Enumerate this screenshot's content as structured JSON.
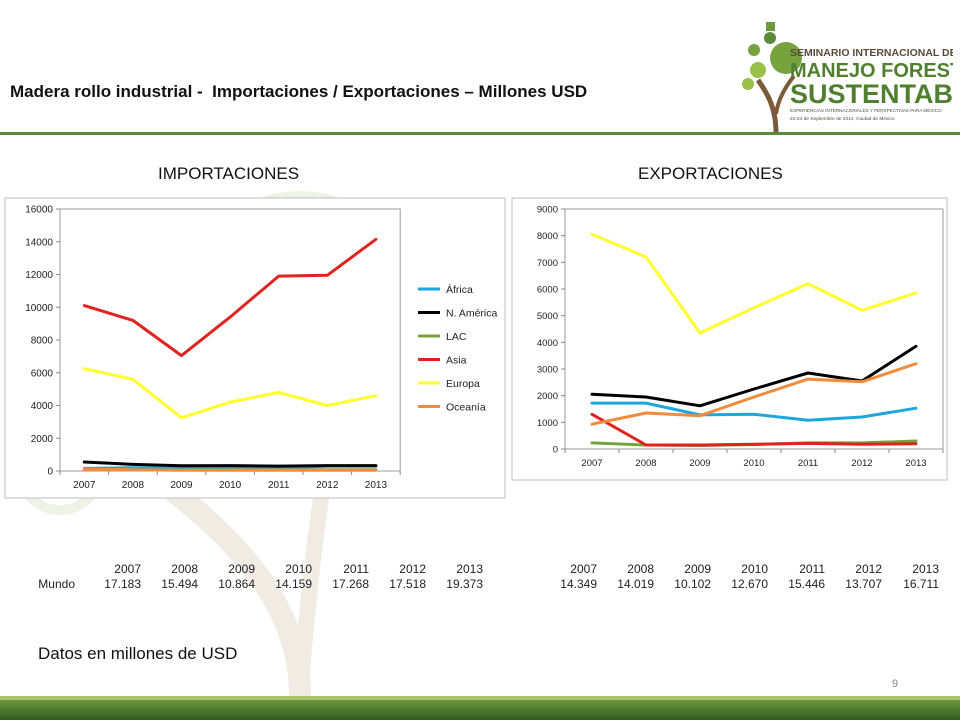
{
  "title": "Madera rollo industrial -  Importaciones / Exportaciones – Millones USD",
  "logo": {
    "line1": "SEMINARIO INTERNACIONAL DE",
    "line2": "MANEJO FORESTAL",
    "line3": "SUSTENTABLE",
    "line4": "EXPERIENCIAS INTERNACIONALES Y PERSPECTIVAS PARA MÉXICO",
    "line5": "22-24 de Septiembre de 2014, Ciudad de México"
  },
  "colors": {
    "africa": "#1fa6dc",
    "namerica": "#000000",
    "lac": "#77a33f",
    "asia": "#e0231f",
    "europa": "#ffff2e",
    "oceania": "#f28b3c",
    "accent": "#5a8a3a"
  },
  "chart_data": [
    {
      "type": "line",
      "title": "IMPORTACIONES",
      "x": [
        "2007",
        "2008",
        "2009",
        "2010",
        "2011",
        "2012",
        "2013"
      ],
      "ylim": [
        0,
        16000
      ],
      "yticks": [
        "0",
        "2000",
        "4000",
        "6000",
        "8000",
        "10000",
        "12000",
        "14000",
        "16000"
      ],
      "legend_position": "right",
      "series": [
        {
          "name": "África",
          "color": "#1fa6dc",
          "values": [
            150,
            200,
            150,
            200,
            150,
            300,
            300
          ]
        },
        {
          "name": "N. América",
          "color": "#000000",
          "values": [
            550,
            400,
            320,
            330,
            300,
            330,
            330
          ]
        },
        {
          "name": "LAC",
          "color": "#77a33f",
          "values": [
            80,
            80,
            60,
            80,
            80,
            80,
            80
          ]
        },
        {
          "name": "Asia",
          "color": "#e0231f",
          "values": [
            10100,
            9200,
            7050,
            9400,
            11900,
            11950,
            14150
          ]
        },
        {
          "name": "Europa",
          "color": "#ffff2e",
          "values": [
            6250,
            5600,
            3250,
            4200,
            4800,
            4000,
            4600
          ]
        },
        {
          "name": "Oceanía",
          "color": "#f28b3c",
          "values": [
            100,
            80,
            40,
            50,
            50,
            40,
            40
          ]
        }
      ]
    },
    {
      "type": "line",
      "title": "EXPORTACIONES",
      "x": [
        "2007",
        "2008",
        "2009",
        "2010",
        "2011",
        "2012",
        "2013"
      ],
      "ylim": [
        0,
        9000
      ],
      "yticks": [
        "0",
        "1000",
        "2000",
        "3000",
        "4000",
        "5000",
        "6000",
        "7000",
        "8000",
        "9000"
      ],
      "series": [
        {
          "name": "África",
          "color": "#1fa6dc",
          "values": [
            1720,
            1720,
            1280,
            1300,
            1080,
            1200,
            1530
          ]
        },
        {
          "name": "N. América",
          "color": "#000000",
          "values": [
            2050,
            1950,
            1620,
            2250,
            2850,
            2550,
            3850
          ]
        },
        {
          "name": "LAC",
          "color": "#77a33f",
          "values": [
            230,
            150,
            130,
            170,
            230,
            230,
            300
          ]
        },
        {
          "name": "Asia",
          "color": "#e0231f",
          "values": [
            1300,
            150,
            150,
            180,
            210,
            180,
            200
          ]
        },
        {
          "name": "Europa",
          "color": "#ffff2e",
          "values": [
            8050,
            7200,
            4350,
            5300,
            6200,
            5200,
            5850
          ]
        },
        {
          "name": "Oceanía",
          "color": "#f28b3c",
          "values": [
            930,
            1350,
            1250,
            1950,
            2620,
            2520,
            3200
          ]
        }
      ]
    }
  ],
  "tables": {
    "imports": {
      "row_label": "Mundo",
      "years": [
        "2007",
        "2008",
        "2009",
        "2010",
        "2011",
        "2012",
        "2013"
      ],
      "values": [
        "17.183",
        "15.494",
        "10.864",
        "14.159",
        "17.268",
        "17.518",
        "19.373"
      ]
    },
    "exports": {
      "years": [
        "2007",
        "2008",
        "2009",
        "2010",
        "2011",
        "2012",
        "2013"
      ],
      "values": [
        "14.349",
        "14.019",
        "10.102",
        "12.670",
        "15.446",
        "13.707",
        "16.711"
      ]
    }
  },
  "note": "Datos en millones de USD",
  "page_number": "9"
}
